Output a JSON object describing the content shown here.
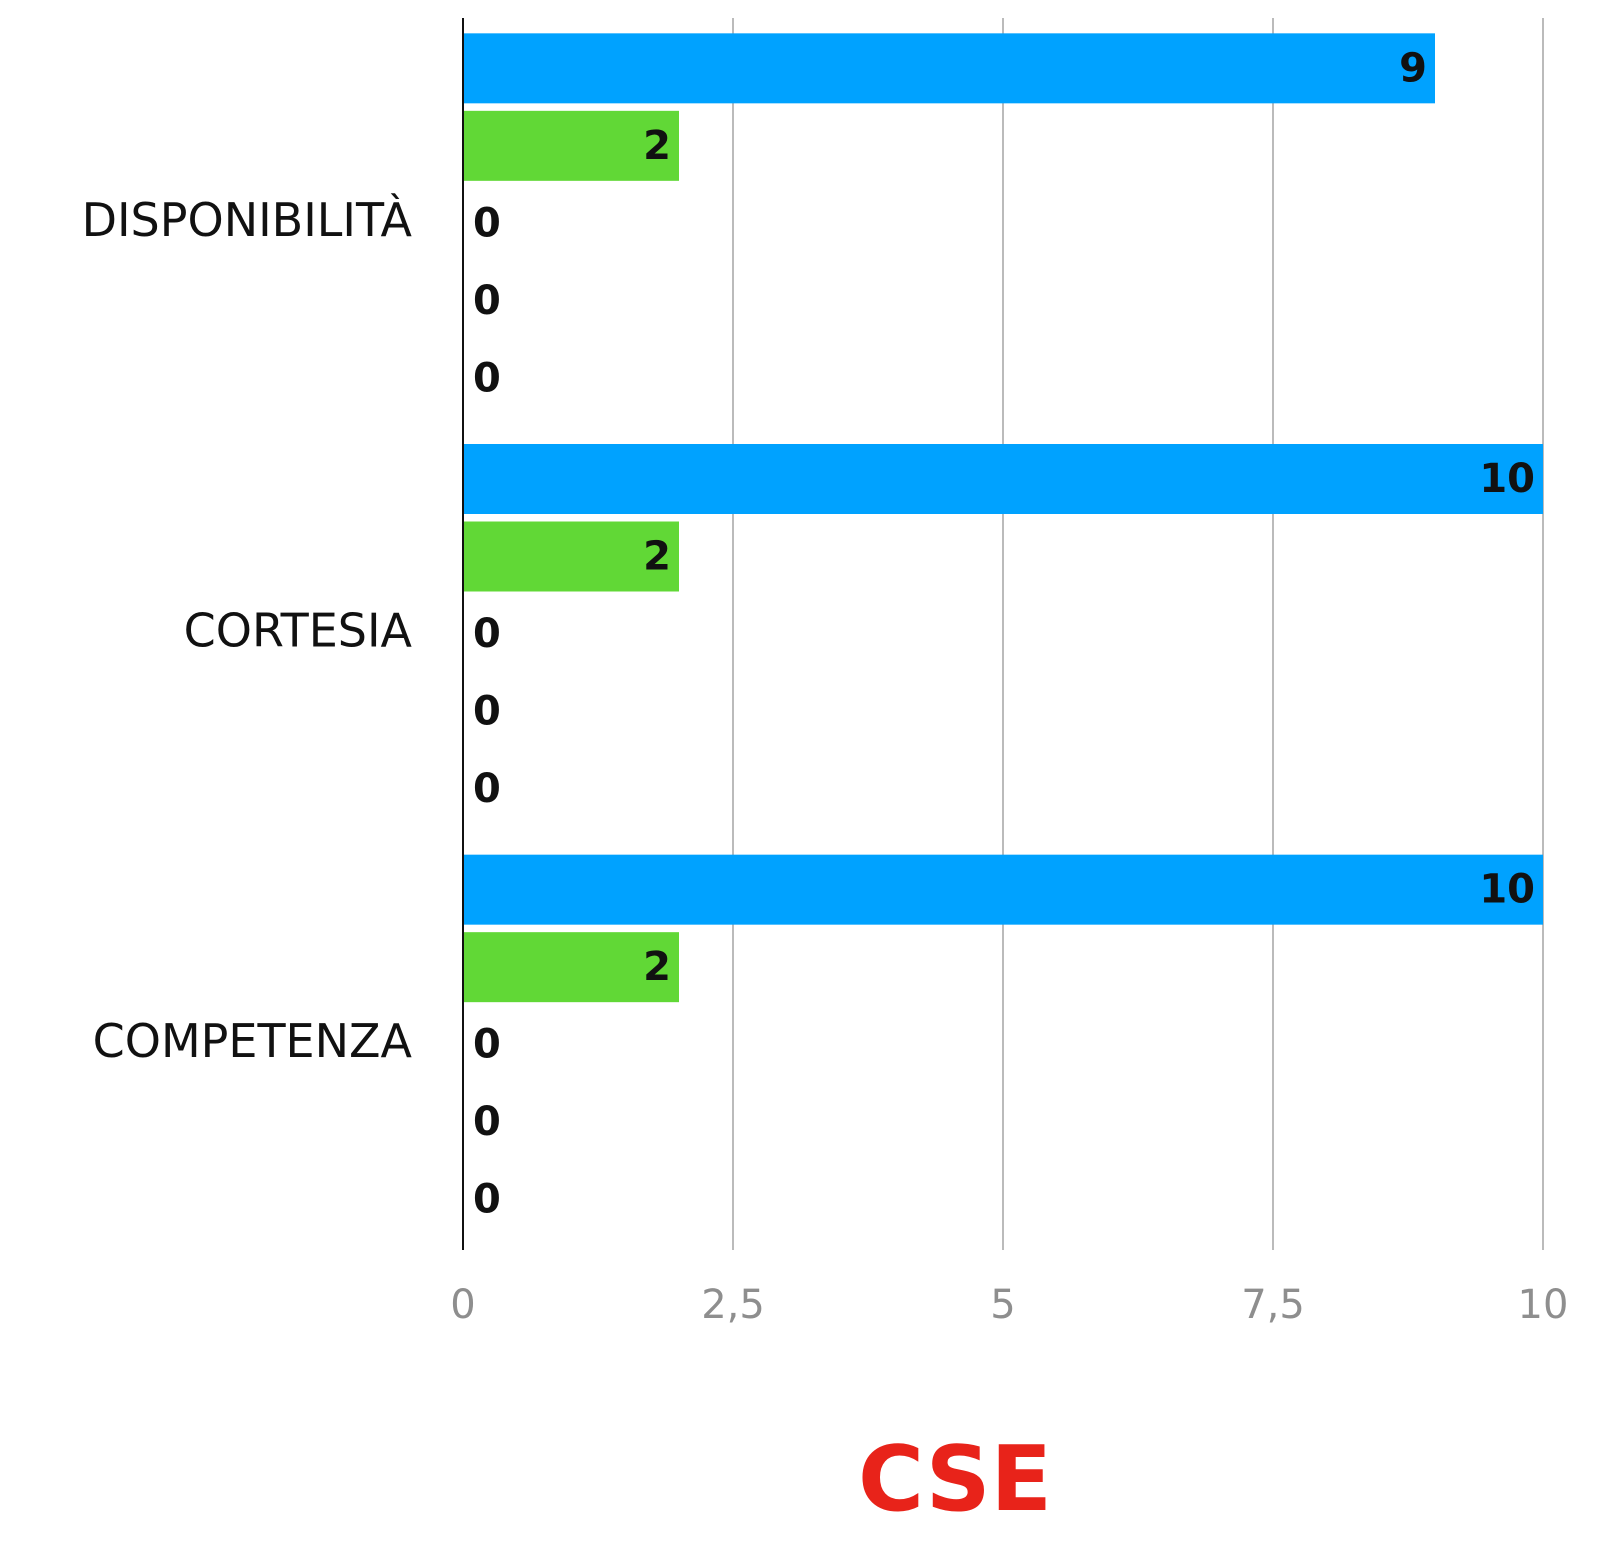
{
  "chart_data": {
    "type": "bar",
    "orientation": "horizontal",
    "xlabel": "CSE",
    "categories": [
      "DISPONIBILITÀ",
      "CORTESIA",
      "COMPETENZA"
    ],
    "series": [
      {
        "color": "#00a2ff",
        "values": [
          9,
          10,
          10
        ]
      },
      {
        "color": "#61d836",
        "values": [
          2,
          2,
          2
        ]
      },
      {
        "values": [
          0,
          0,
          0
        ]
      },
      {
        "values": [
          0,
          0,
          0
        ]
      },
      {
        "values": [
          0,
          0,
          0
        ]
      }
    ],
    "xlim": [
      0,
      10
    ],
    "xticks": [
      0,
      {
        "value": 2.5,
        "label": "2,5"
      },
      5,
      {
        "value": 7.5,
        "label": "7,5"
      },
      10
    ],
    "grid": true
  }
}
